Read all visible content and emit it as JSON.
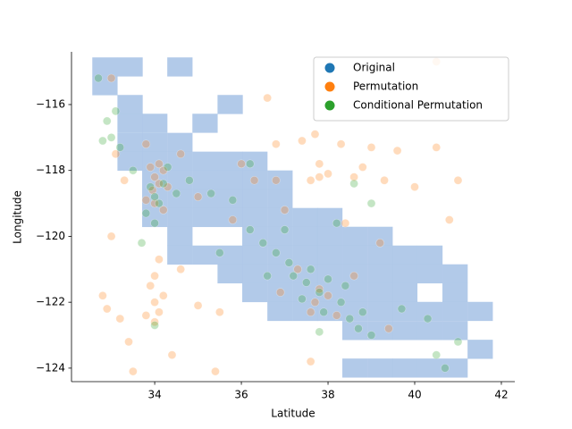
{
  "chart_data": {
    "type": "scatter",
    "xlabel": "Latitude",
    "ylabel": "Longitude",
    "xlim": [
      32.08,
      42.31
    ],
    "ylim": [
      -124.41,
      -114.4
    ],
    "xticks": [
      34,
      36,
      38,
      40,
      42
    ],
    "yticks": [
      {
        "value": -116,
        "label": "−116"
      },
      {
        "value": -118,
        "label": "−118"
      },
      {
        "value": -120,
        "label": "−120"
      },
      {
        "value": -122,
        "label": "−122"
      },
      {
        "value": -124,
        "label": "−124"
      }
    ],
    "legend": "upper right",
    "series": [
      {
        "name": "Original",
        "color": "#1f77b4",
        "kind": "hist2d",
        "hist_color": "#aec7e8",
        "bin_size": [
          0.577,
          0.571
        ],
        "x": [
          32.56,
          33.14,
          34.29,
          32.56,
          33.14,
          35.45,
          33.14,
          33.71,
          34.87,
          33.14,
          33.71,
          34.29,
          33.14,
          33.71,
          34.29,
          34.87,
          35.45,
          36.02,
          33.71,
          34.29,
          34.87,
          35.45,
          36.02,
          36.6,
          33.71,
          34.29,
          34.87,
          35.45,
          36.02,
          36.6,
          33.71,
          34.29,
          34.87,
          35.45,
          36.02,
          36.6,
          37.18,
          37.75,
          34.29,
          36.02,
          36.6,
          37.18,
          37.75,
          38.33,
          38.91,
          34.29,
          34.87,
          35.45,
          36.02,
          36.6,
          37.18,
          37.75,
          38.33,
          38.91,
          39.48,
          40.06,
          35.45,
          36.02,
          36.6,
          37.18,
          37.75,
          38.33,
          38.91,
          39.48,
          40.06,
          40.64,
          36.02,
          36.6,
          37.18,
          37.75,
          38.33,
          38.91,
          39.48,
          40.64,
          36.6,
          37.18,
          37.75,
          38.33,
          38.91,
          39.48,
          40.06,
          40.64,
          41.22,
          38.33,
          38.91,
          39.48,
          40.06,
          40.64,
          41.22,
          38.33,
          38.91,
          39.48,
          40.06,
          40.64
        ],
        "values": [
          -115.14,
          -115.14,
          -115.14,
          -115.71,
          -116.28,
          -116.28,
          -116.85,
          -116.85,
          -116.85,
          -117.43,
          -117.43,
          -117.43,
          -118.0,
          -118.0,
          -118.0,
          -118.0,
          -118.0,
          -118.0,
          -118.57,
          -118.57,
          -118.57,
          -118.57,
          -118.57,
          -118.57,
          -119.14,
          -119.14,
          -119.14,
          -119.14,
          -119.14,
          -119.14,
          -119.71,
          -119.71,
          -119.71,
          -119.71,
          -119.71,
          -119.71,
          -119.71,
          -119.71,
          -120.28,
          -120.28,
          -120.28,
          -120.28,
          -120.28,
          -120.28,
          -120.28,
          -120.85,
          -120.85,
          -120.85,
          -120.85,
          -120.85,
          -120.85,
          -120.85,
          -120.85,
          -120.85,
          -120.85,
          -120.85,
          -121.42,
          -121.42,
          -121.42,
          -121.42,
          -121.42,
          -121.42,
          -121.42,
          -121.42,
          -121.42,
          -121.42,
          -121.99,
          -121.99,
          -121.99,
          -121.99,
          -121.99,
          -121.99,
          -121.99,
          -121.99,
          -122.56,
          -122.56,
          -122.56,
          -122.56,
          -122.56,
          -122.56,
          -122.56,
          -122.56,
          -122.56,
          -123.14,
          -123.14,
          -123.14,
          -123.14,
          -123.14,
          -123.71,
          -124.28,
          -124.28,
          -124.28,
          -124.28,
          -124.28
        ]
      },
      {
        "name": "Permutation",
        "color": "#ff7f0e",
        "x": [
          33.0,
          33.1,
          33.3,
          33.8,
          33.9,
          34.0,
          34.1,
          34.2,
          33.95,
          34.1,
          34.3,
          33.8,
          34.2,
          34.0,
          33.9,
          34.0,
          34.1,
          34.2,
          33.8,
          34.0,
          34.1,
          34.0,
          32.8,
          33.2,
          32.9,
          33.0,
          33.4,
          34.6,
          35.0,
          35.5,
          36.0,
          36.3,
          36.8,
          36.8,
          37.4,
          37.7,
          37.8,
          37.8,
          37.6,
          38.0,
          38.3,
          38.6,
          38.8,
          39.0,
          39.3,
          39.6,
          40.0,
          40.5,
          41.0,
          40.8,
          37.7,
          37.8,
          37.6,
          38.0,
          38.2,
          37.3,
          36.9,
          38.6,
          39.2,
          35.8,
          36.6,
          38.1,
          40.5,
          33.5,
          34.4,
          35.4,
          37.6,
          39.4,
          38.4,
          37.0,
          34.6,
          35.0
        ],
        "values": [
          -115.2,
          -117.5,
          -118.3,
          -117.2,
          -117.9,
          -118.2,
          -118.4,
          -118.0,
          -118.6,
          -117.8,
          -118.5,
          -118.9,
          -119.2,
          -119.0,
          -121.5,
          -122.0,
          -122.3,
          -121.8,
          -122.4,
          -121.2,
          -120.7,
          -122.6,
          -121.8,
          -122.5,
          -122.2,
          -120.0,
          -123.2,
          -117.5,
          -118.8,
          -122.3,
          -117.8,
          -118.3,
          -117.2,
          -118.3,
          -117.1,
          -116.9,
          -117.8,
          -118.2,
          -118.3,
          -118.1,
          -117.2,
          -118.2,
          -117.9,
          -117.3,
          -118.3,
          -117.4,
          -118.5,
          -117.3,
          -118.3,
          -119.5,
          -122.0,
          -121.6,
          -122.3,
          -121.8,
          -122.4,
          -121.0,
          -121.7,
          -121.2,
          -120.2,
          -119.5,
          -115.8,
          -115.5,
          -114.7,
          -124.1,
          -123.6,
          -124.1,
          -123.8,
          -122.8,
          -119.6,
          -119.2,
          -121.0,
          -122.1
        ]
      },
      {
        "name": "Conditional Permutation",
        "color": "#2ca02c",
        "x": [
          32.7,
          32.9,
          33.0,
          33.2,
          32.8,
          33.1,
          33.5,
          33.9,
          34.0,
          34.1,
          34.2,
          33.8,
          34.0,
          34.3,
          34.5,
          34.8,
          35.3,
          35.8,
          36.2,
          36.5,
          36.8,
          37.0,
          37.2,
          37.5,
          37.6,
          37.8,
          37.4,
          37.9,
          38.0,
          38.3,
          38.5,
          38.7,
          38.8,
          38.4,
          37.1,
          36.6,
          35.5,
          34.0,
          33.7,
          39.0,
          39.7,
          40.3,
          40.5,
          40.7,
          41.0,
          38.2,
          39.0,
          36.2,
          37.8,
          38.6
        ],
        "values": [
          -115.2,
          -116.5,
          -117.0,
          -117.3,
          -117.1,
          -116.2,
          -118.0,
          -118.5,
          -118.8,
          -119.0,
          -118.4,
          -119.3,
          -119.6,
          -117.9,
          -118.7,
          -118.3,
          -118.7,
          -118.9,
          -119.8,
          -120.2,
          -120.5,
          -119.8,
          -121.2,
          -121.4,
          -121.0,
          -121.7,
          -121.9,
          -122.3,
          -121.3,
          -122.0,
          -122.5,
          -122.8,
          -122.3,
          -121.5,
          -120.8,
          -121.2,
          -120.5,
          -122.7,
          -120.2,
          -123.0,
          -122.2,
          -122.5,
          -123.6,
          -124.0,
          -123.2,
          -119.6,
          -119.0,
          -117.8,
          -122.9,
          -118.4
        ]
      }
    ]
  }
}
